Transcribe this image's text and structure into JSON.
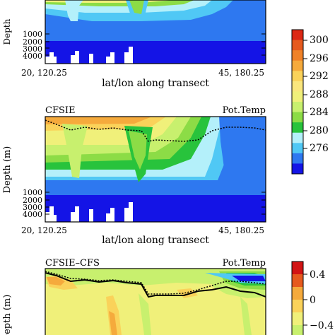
{
  "colors": {
    "levels": [
      "#1414e6",
      "#2e78f0",
      "#50c8f5",
      "#b4f0fa",
      "#28c33c",
      "#8cdc46",
      "#c8f06e",
      "#f0f07a",
      "#fae67d",
      "#fad25a",
      "#f5aa3c",
      "#f08228",
      "#e65a1e",
      "#dc2814"
    ],
    "diff_levels": [
      "#c8f06e",
      "#f0f07a",
      "#fad25a",
      "#f5aa3c",
      "#e65a1e",
      "#d21414"
    ]
  },
  "panel_top": {
    "ylabel": "Depth",
    "xlabel": "lat/lon along transect",
    "x_start": "20, 120.25",
    "x_end": "45, 180.25",
    "y_ticks": [
      "1000",
      "2000",
      "3000",
      "4000"
    ]
  },
  "panel_mid": {
    "left_title": "CFSIE",
    "right_title": "Pot.Temp",
    "ylabel": "Depth (m)",
    "xlabel": "lat/lon along transect",
    "x_start": "20, 120.25",
    "x_end": "45, 180.25",
    "y_ticks": [
      "1000",
      "2000",
      "3000",
      "4000"
    ]
  },
  "panel_bottom": {
    "left_title": "CFSIE–CFS",
    "right_title": "Pot.Temp",
    "ylabel": "Depth (m)"
  },
  "colorbar_temp": {
    "labels": [
      "300",
      "296",
      "292",
      "288",
      "284",
      "280",
      "276"
    ]
  },
  "colorbar_diff": {
    "labels": [
      "0.4",
      "0",
      "−0.4"
    ]
  },
  "chart_data": [
    {
      "type": "heatmap",
      "panel": "top",
      "ylabel": "Depth",
      "xlabel": "lat/lon along transect",
      "x_ticks": [
        "20, 120.25",
        "45, 180.25"
      ],
      "y_ticks": [
        1000,
        2000,
        3000,
        4000
      ],
      "colorbar": [
        300,
        296,
        292,
        288,
        284,
        280,
        276
      ]
    },
    {
      "type": "heatmap",
      "panel": "middle",
      "title_left": "CFSIE",
      "title_right": "Pot.Temp",
      "ylabel": "Depth (m)",
      "xlabel": "lat/lon along transect",
      "x_ticks": [
        "20, 120.25",
        "45, 180.25"
      ],
      "y_ticks": [
        1000,
        2000,
        3000,
        4000
      ],
      "colorbar": [
        300,
        296,
        292,
        288,
        284,
        280,
        276
      ]
    },
    {
      "type": "heatmap",
      "panel": "bottom",
      "title_left": "CFSIE–CFS",
      "title_right": "Pot.Temp",
      "ylabel": "Depth (m)",
      "colorbar": [
        0.4,
        0,
        -0.4
      ]
    }
  ]
}
